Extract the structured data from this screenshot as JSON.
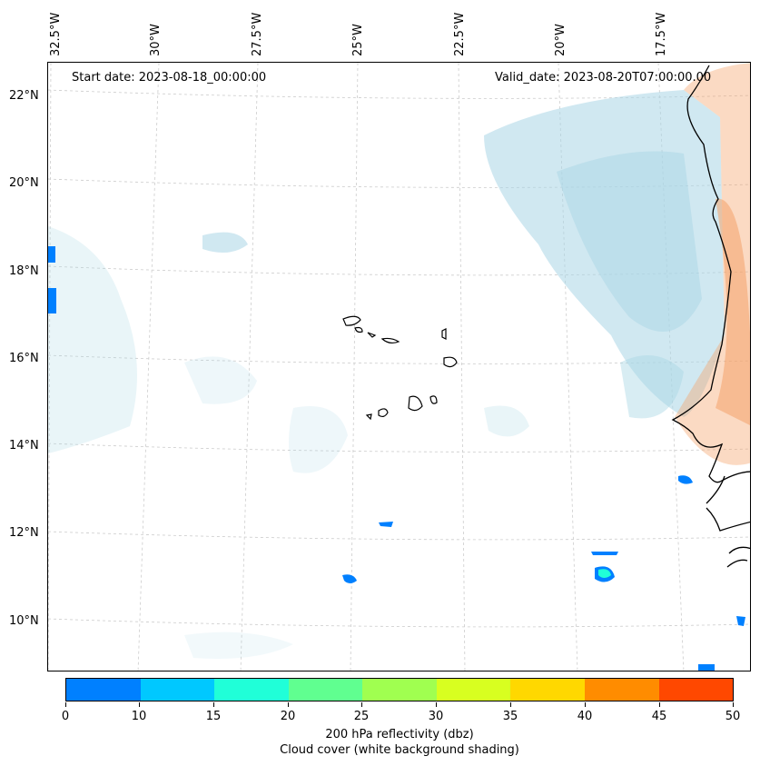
{
  "map": {
    "start_date_text": "Start date: 2023-08-18_00:00:00",
    "valid_date_text": "Valid_date: 2023-08-20T07:00:00.00",
    "longitude_labels": [
      "32.5°W",
      "30°W",
      "27.5°W",
      "25°W",
      "22.5°W",
      "20°W",
      "17.5°W"
    ],
    "latitude_labels": [
      "22°N",
      "20°N",
      "18°N",
      "16°N",
      "14°N",
      "12°N",
      "10°N"
    ],
    "colors": {
      "land_shading": "#f4a26a",
      "cloud_shading": "#a9d6e5",
      "coastline": "#000000",
      "gridline": "#cccccc"
    }
  },
  "colorbar": {
    "ticks": [
      "0",
      "10",
      "15",
      "20",
      "25",
      "30",
      "35",
      "40",
      "45",
      "50"
    ],
    "colors": [
      "#0080ff",
      "#00c8ff",
      "#20ffd8",
      "#60ff90",
      "#a0ff50",
      "#d8ff20",
      "#ffd800",
      "#ff8c00",
      "#ff4800"
    ],
    "label_line1": "200 hPa reflectivity (dbz)",
    "label_line2": "Cloud cover (white background shading)"
  }
}
